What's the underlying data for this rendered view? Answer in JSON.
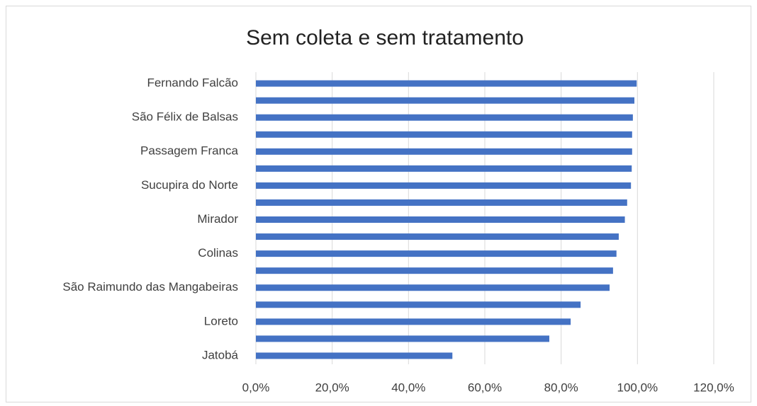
{
  "chart_data": {
    "type": "bar",
    "orientation": "horizontal",
    "title": "Sem coleta e sem tratamento",
    "categories": [
      "Fernando Falcão",
      null,
      "São Félix de Balsas",
      null,
      "Passagem Franca",
      null,
      "Sucupira do Norte",
      null,
      "Mirador",
      null,
      "Colinas",
      null,
      "São Raimundo das Mangabeiras",
      null,
      "Loreto",
      null,
      "Jatobá"
    ],
    "values": [
      99.8,
      99.2,
      98.8,
      98.6,
      98.6,
      98.5,
      98.3,
      97.3,
      96.7,
      95.1,
      94.5,
      93.6,
      92.7,
      85.1,
      82.5,
      76.9,
      51.5
    ],
    "color": "#4472c4",
    "xlim": [
      0,
      120
    ],
    "xticks": [
      {
        "value": 0,
        "label": "0,0%"
      },
      {
        "value": 20,
        "label": "20,0%"
      },
      {
        "value": 40,
        "label": "40,0%"
      },
      {
        "value": 60,
        "label": "60,0%"
      },
      {
        "value": 80,
        "label": "80,0%"
      },
      {
        "value": 100,
        "label": "100,0%"
      },
      {
        "value": 120,
        "label": "120,0%"
      }
    ],
    "grid": true
  }
}
